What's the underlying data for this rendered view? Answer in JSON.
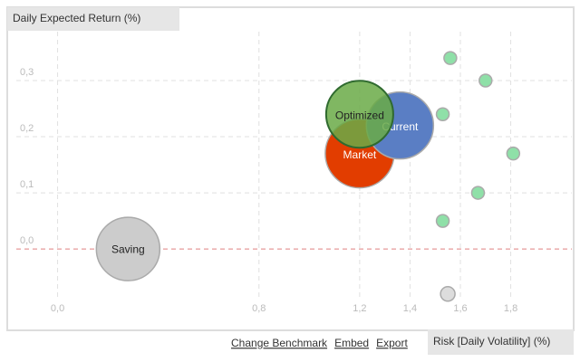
{
  "chart_data": {
    "type": "bubble",
    "title": "Daily Expected Return (%)",
    "x_label": "Risk [Daily Volatility] (%)",
    "links": [
      "Change Benchmark",
      "Embed",
      "Export"
    ],
    "xlim": [
      -0.2,
      2.05
    ],
    "ylim": [
      -0.14,
      0.387
    ],
    "xticks": [
      {
        "value": 0,
        "label": "0,0"
      },
      {
        "value": 0.8,
        "label": "0,8"
      },
      {
        "value": 1.2,
        "label": "1,2"
      },
      {
        "value": 1.4,
        "label": "1,4"
      },
      {
        "value": 1.6,
        "label": "1,6"
      },
      {
        "value": 1.8,
        "label": "1,8"
      }
    ],
    "yticks": [
      {
        "value": 0,
        "label": "0,0"
      },
      {
        "value": 0.1,
        "label": "0,1"
      },
      {
        "value": 0.2,
        "label": "0,2"
      },
      {
        "value": 0.3,
        "label": "0,3"
      }
    ],
    "grid": true,
    "points": [
      {
        "label": "Saving",
        "x": 0.28,
        "y": 0.0,
        "size": 35,
        "color": "#cccccc"
      },
      {
        "label": "Market",
        "x": 1.2,
        "y": 0.17,
        "size": 38,
        "color": "#e23d00"
      },
      {
        "label": "Current",
        "x": 1.36,
        "y": 0.22,
        "size": 37,
        "color": "#5a7ec4"
      },
      {
        "label": "Optimized",
        "x": 1.2,
        "y": 0.24,
        "size": 37,
        "color": "#6aaa46"
      },
      {
        "x": 1.56,
        "y": 0.34,
        "size": 7,
        "color": "#8fe0a8"
      },
      {
        "x": 1.7,
        "y": 0.3,
        "size": 7,
        "color": "#8fe0a8"
      },
      {
        "x": 1.53,
        "y": 0.24,
        "size": 7,
        "color": "#8fe0a8"
      },
      {
        "x": 1.81,
        "y": 0.17,
        "size": 7,
        "color": "#8fe0a8"
      },
      {
        "x": 1.67,
        "y": 0.1,
        "size": 7,
        "color": "#8fe0a8"
      },
      {
        "x": 1.53,
        "y": 0.05,
        "size": 7,
        "color": "#8fe0a8"
      },
      {
        "x": 1.55,
        "y": -0.08,
        "size": 8,
        "color": "#dddddd"
      }
    ]
  }
}
